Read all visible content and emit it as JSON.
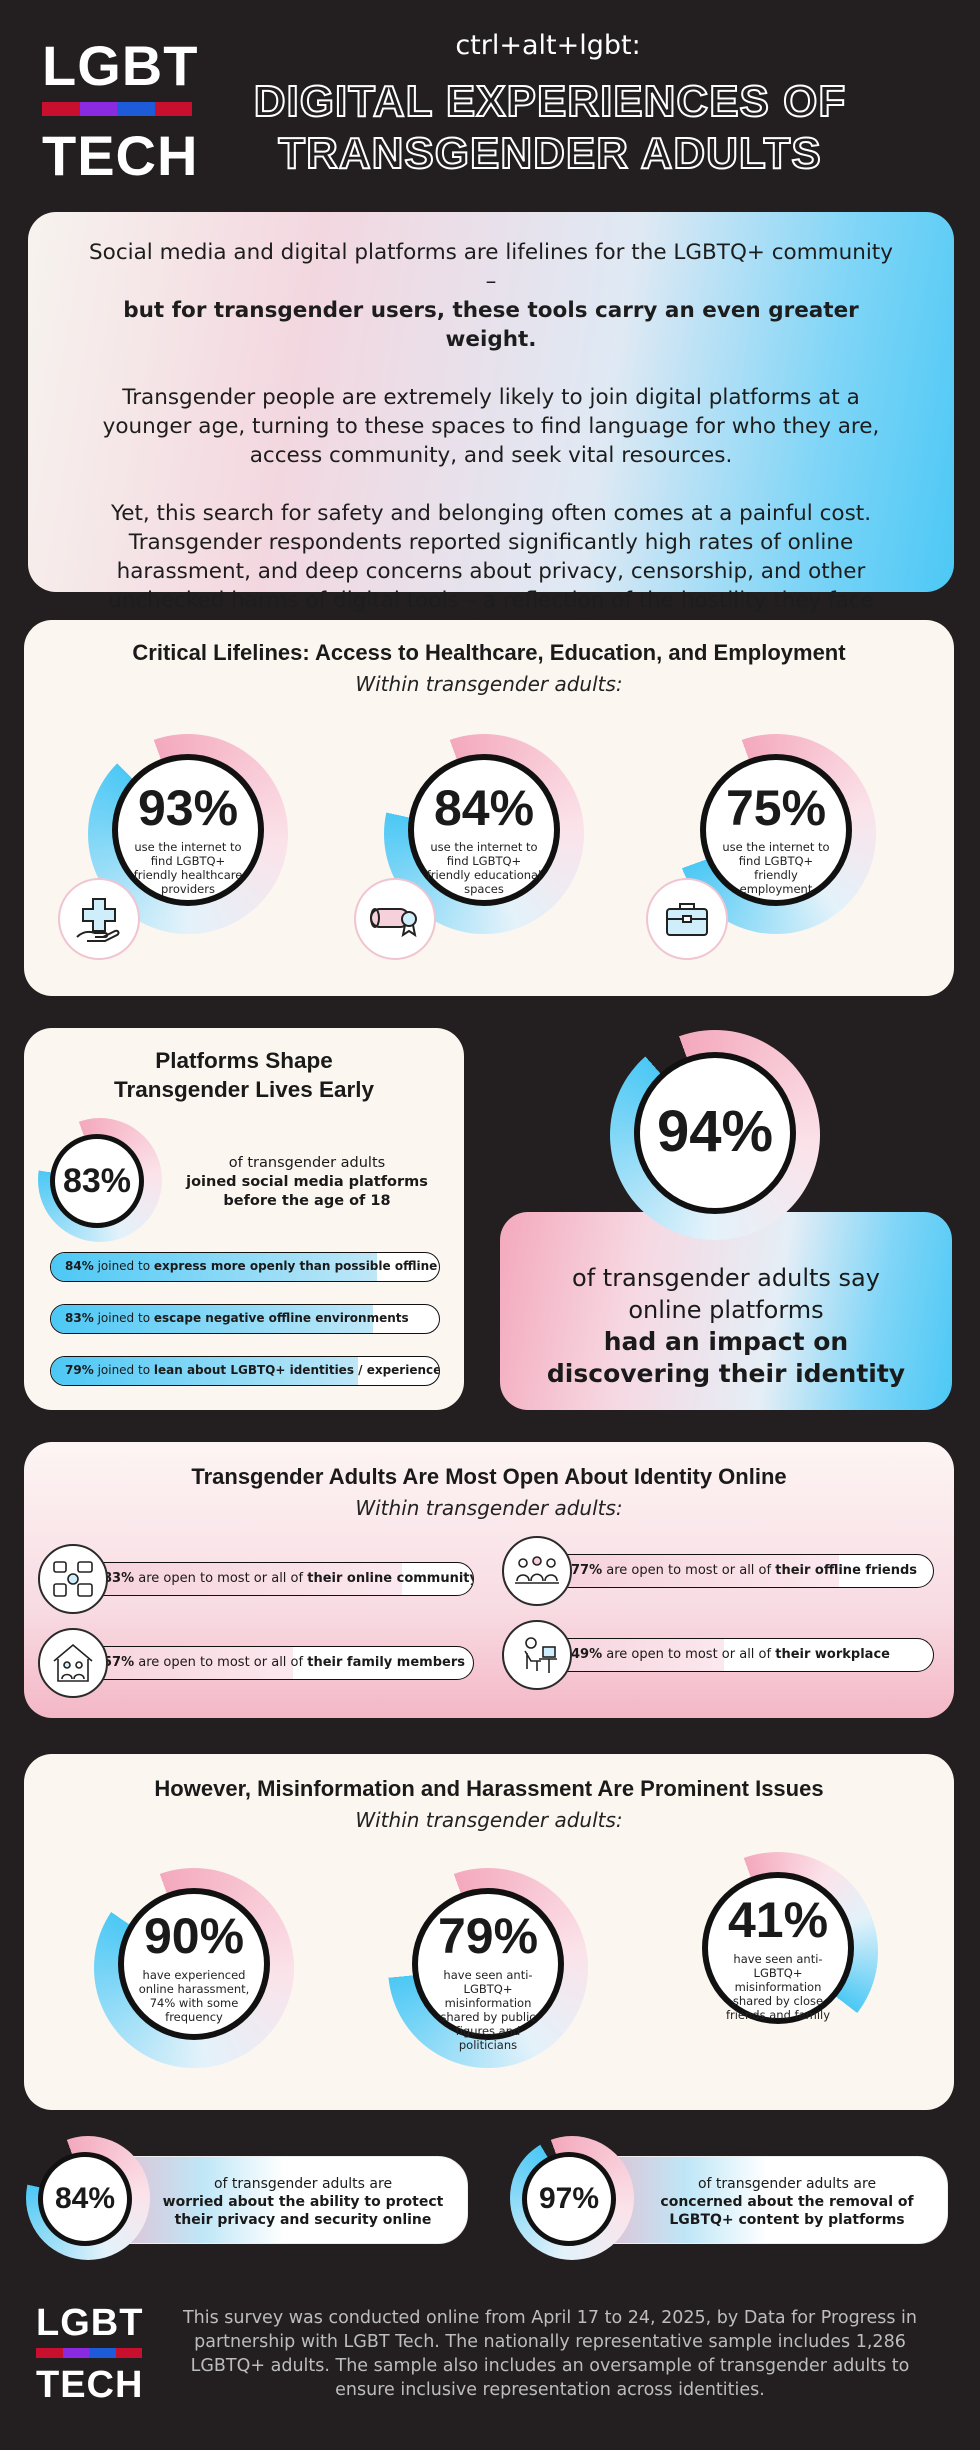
{
  "header": {
    "logo_top": "LGBT",
    "logo_bottom": "TECH",
    "subtitle": "ctrl+alt+lgbt:",
    "title_line1": "DIGITAL EXPERIENCES OF",
    "title_line2": "TRANSGENDER ADULTS"
  },
  "intro": {
    "p1_plain": "Social media and digital platforms are lifelines for the LGBTQ+ community –",
    "p1_bold": "but for transgender users, these tools carry an even greater weight.",
    "p2": "Transgender people are extremely likely to join digital platforms at a younger age, turning to these spaces to find language for who they are, access community, and seek vital resources.",
    "p3": "Yet, this search for safety and belonging often comes at a painful cost. Transgender respondents reported significantly high rates of online harassment, and deep concerns about privacy, censorship, and other unchecked harms of digital tools – a reflection of the hostility they face both online and off."
  },
  "lifelines": {
    "title": "Critical Lifelines: Access to Healthcare, Education, and Employment",
    "subtitle": "Within transgender adults:",
    "items": [
      {
        "pct": "93%",
        "value": 93,
        "caption": "use the internet to find LGBTQ+ friendly healthcare providers",
        "icon": "healthcare-hand-icon"
      },
      {
        "pct": "84%",
        "value": 84,
        "caption": "use the internet to find LGBTQ+ friendly educational spaces",
        "icon": "diploma-icon"
      },
      {
        "pct": "75%",
        "value": 75,
        "caption": "use the internet to find LGBTQ+ friendly employment",
        "icon": "briefcase-icon"
      }
    ]
  },
  "platforms": {
    "title_line1": "Platforms Shape",
    "title_line2": "Transgender Lives Early",
    "pct": "83%",
    "value": 83,
    "text_plain": "of transgender adults",
    "text_bold": "joined social media platforms before the age of 18",
    "bars": [
      {
        "value": 84,
        "pct": "84%",
        "plain": "joined to",
        "bold": "express more openly than possible offline"
      },
      {
        "value": 83,
        "pct": "83%",
        "plain": "joined to",
        "bold": "escape negative offline environments"
      },
      {
        "value": 79,
        "pct": "79%",
        "plain": "joined to",
        "bold": "lean about LGBTQ+ identities / experiences"
      }
    ]
  },
  "identity": {
    "pct": "94%",
    "value": 94,
    "line1": "of transgender adults say",
    "line2": "online platforms",
    "bold1": "had an impact on",
    "bold2": "discovering their identity"
  },
  "open": {
    "title": "Transgender Adults Are Most Open About Identity Online",
    "subtitle": "Within transgender adults:",
    "items": [
      {
        "value": 83,
        "pct": "83%",
        "plain": "are open to most or all of",
        "bold": "their online community",
        "icon": "online-community-icon"
      },
      {
        "value": 77,
        "pct": "77%",
        "plain": "are open to most or all of",
        "bold": "their offline friends",
        "icon": "friends-group-icon"
      },
      {
        "value": 57,
        "pct": "57%",
        "plain": "are open to most or all of",
        "bold": "their family members",
        "icon": "family-home-icon"
      },
      {
        "value": 49,
        "pct": "49%",
        "plain": "are open to most or all of",
        "bold": "their workplace",
        "icon": "workplace-desk-icon"
      }
    ]
  },
  "harm": {
    "title": "However, Misinformation and Harassment Are Prominent Issues",
    "subtitle": "Within transgender adults:",
    "items": [
      {
        "pct": "90%",
        "value": 90,
        "caption": "have experienced online harassment, 74% with some frequency"
      },
      {
        "pct": "79%",
        "value": 79,
        "caption": "have seen anti-LGBTQ+ misinformation shared by public figures and politicians"
      },
      {
        "pct": "41%",
        "value": 41,
        "caption": "have seen anti-LGBTQ+ misinformation shared by close friends and family"
      }
    ]
  },
  "concerns": [
    {
      "pct": "84%",
      "value": 84,
      "plain": "of transgender adults are",
      "bold": "worried about the ability to protect their privacy and security online"
    },
    {
      "pct": "97%",
      "value": 97,
      "plain": "of transgender adults are",
      "bold": "concerned about the removal of LGBTQ+ content by platforms"
    }
  ],
  "footer": {
    "logo_top": "LGBT",
    "logo_bottom": "TECH",
    "note": "This survey was conducted online from April 17 to 24, 2025, by Data for Progress in partnership with LGBT Tech. The nationally representative sample includes 1,286 LGBTQ+ adults. The sample also includes an oversample of transgender adults to ensure inclusive representation across identities."
  },
  "colors": {
    "background": "#231f20",
    "pink": "#f4a9bd",
    "blue": "#4cc8f5",
    "cream": "#fbf6ef",
    "stripe": [
      "#c8102e",
      "#8a2be2",
      "#1e5bd8",
      "#c8102e"
    ]
  }
}
